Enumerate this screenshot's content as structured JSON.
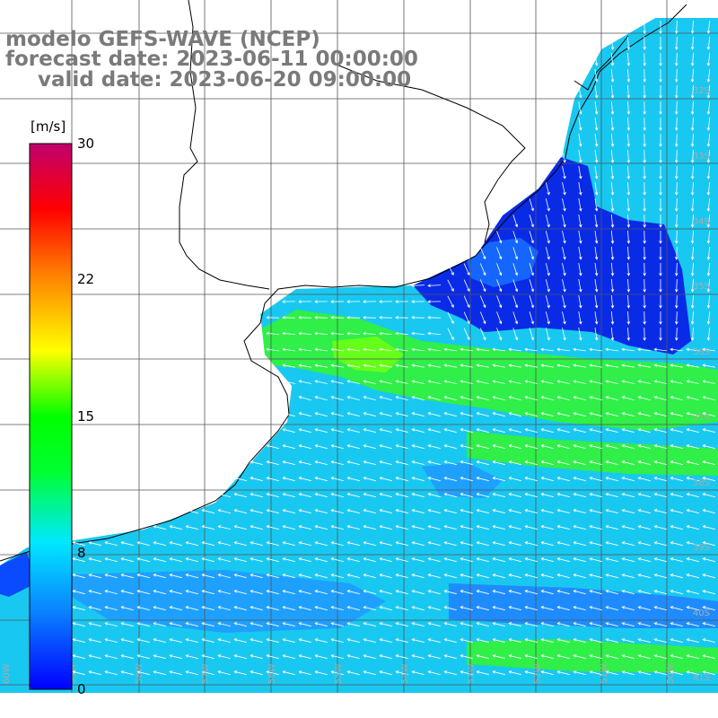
{
  "title": {
    "model": "modelo GEFS-WAVE (NCEP)",
    "forecast": "forecast date: 2023-06-11 00:00:00",
    "valid": "valid date: 2023-06-20 09:00:00"
  },
  "colorbar": {
    "unit": "[m/s]",
    "ticks": [
      {
        "label": "30",
        "value": 30
      },
      {
        "label": "22",
        "value": 22
      },
      {
        "label": "15",
        "value": 15
      },
      {
        "label": "8",
        "value": 8
      },
      {
        "label": "0",
        "value": 0
      }
    ],
    "colors": [
      "#0000ff",
      "#0a80ff",
      "#00e8ff",
      "#00ff00",
      "#ffff00",
      "#ff8000",
      "#ff0000",
      "#c0006e"
    ],
    "range": [
      0,
      30
    ]
  },
  "lat_labels": [
    "32S",
    "33S",
    "34S",
    "35S",
    "36S",
    "37S",
    "38S",
    "39S",
    "40S",
    "41S"
  ],
  "lon_labels": [
    "60W",
    "59W",
    "58W",
    "57W",
    "56W",
    "55W",
    "54W",
    "53W",
    "52W",
    "51W",
    "50W"
  ],
  "colors": {
    "ocean_blue": "#0066ff",
    "ocean_deep_blue": "#0a2be6",
    "ocean_cyan": "#19d6f2",
    "ocean_green": "#22ee3a",
    "land": "#ffffff",
    "grid": "#555555",
    "coast": "#000000",
    "arrow": "#ffffff",
    "title_text": "#7a7a7a"
  }
}
